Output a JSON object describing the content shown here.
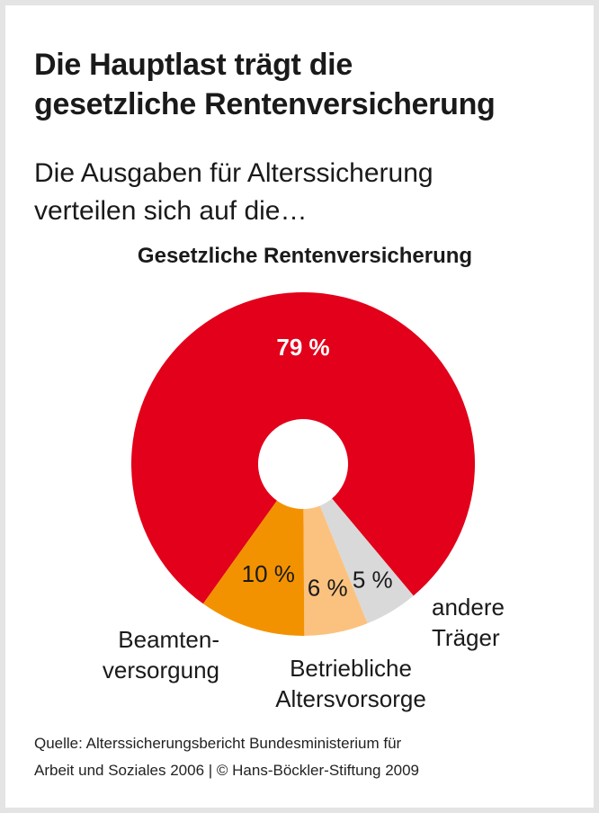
{
  "title_lines": [
    "Die Hauptlast trägt die",
    "gesetzliche Rentenversicherung"
  ],
  "subtitle_lines": [
    "Die Ausgaben für Alterssicherung",
    "verteilen sich auf die…"
  ],
  "chart_data": {
    "type": "pie",
    "donut": true,
    "slices": [
      {
        "label": "Gesetzliche Rentenversicherung",
        "value": 79,
        "display": "79 %",
        "color": "#e2001a"
      },
      {
        "label": "Beamten-versorgung",
        "value": 10,
        "display": "10 %",
        "color": "#f39200"
      },
      {
        "label": "Betriebliche Altersvorsorge",
        "value": 6,
        "display": "6 %",
        "color": "#fbc27f"
      },
      {
        "label": "andere Träger",
        "value": 5,
        "display": "5 %",
        "color": "#d9d9d9"
      }
    ]
  },
  "labels": {
    "grv": "Gesetzliche Rentenversicherung",
    "beamten": [
      "Beamten-",
      "versorgung"
    ],
    "betrieb": [
      "Betriebliche",
      "Altersvorsorge"
    ],
    "andere": [
      "andere",
      "Träger"
    ]
  },
  "source_lines": [
    "Quelle: Alterssicherungsbericht Bundesministerium für",
    "Arbeit und Soziales 2006 | © Hans-Böckler-Stiftung 2009"
  ]
}
